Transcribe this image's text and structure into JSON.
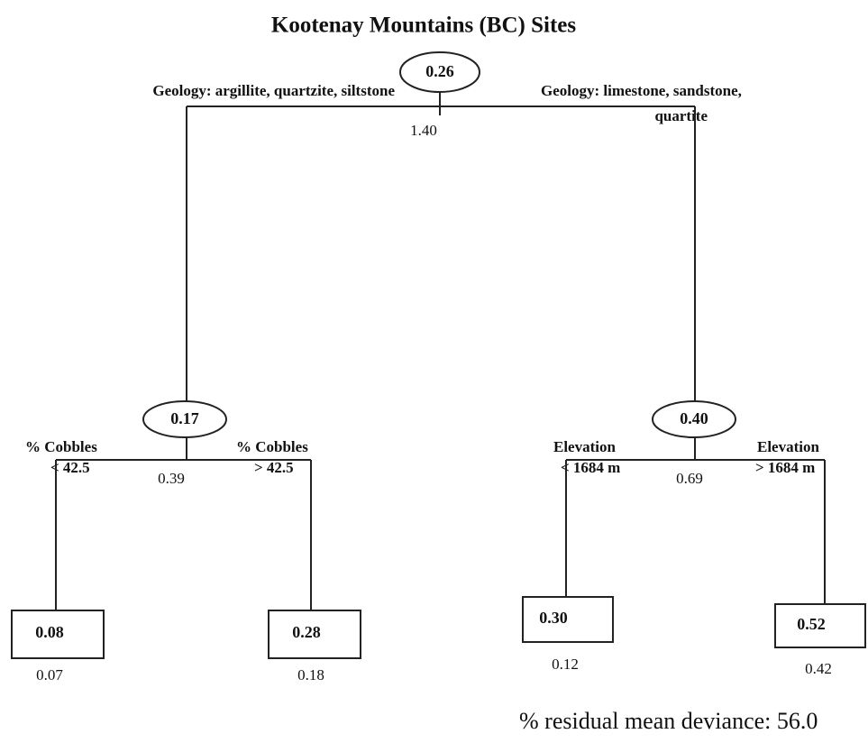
{
  "title": "Kootenay Mountains (BC) Sites",
  "nodes": [
    {
      "value": "0.26",
      "deviance": "1.40"
    },
    {
      "value": "0.17",
      "deviance": "0.39"
    },
    {
      "value": "0.40",
      "deviance": "0.69"
    },
    {
      "value": "0.08",
      "deviance": "0.07"
    },
    {
      "value": "0.28",
      "deviance": "0.18"
    },
    {
      "value": "0.30",
      "deviance": "0.12"
    },
    {
      "value": "0.52",
      "deviance": "0.42"
    }
  ],
  "splits": [
    {
      "lines": [
        "Geology: argillite, quartzite, siltstone"
      ]
    },
    {
      "lines": [
        "Geology: limestone, sandstone,",
        "quartite"
      ]
    },
    {
      "lines": [
        "% Cobbles",
        "< 42.5"
      ]
    },
    {
      "lines": [
        "% Cobbles",
        "> 42.5"
      ]
    },
    {
      "lines": [
        "Elevation",
        "< 1684 m"
      ]
    },
    {
      "lines": [
        "Elevation",
        "> 1684 m"
      ]
    }
  ],
  "footer": "% residual mean deviance: 56.0"
}
